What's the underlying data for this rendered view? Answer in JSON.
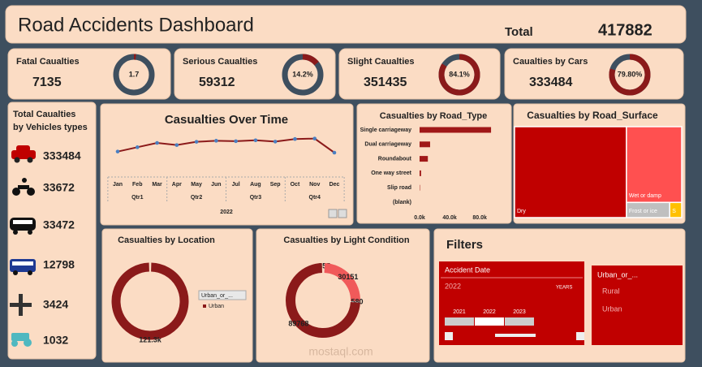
{
  "header": {
    "title": "Road Accidents Dashboard",
    "total_label": "Total",
    "total_value": "417882"
  },
  "kpis": [
    {
      "label": "Fatal Caualties",
      "value": "7135",
      "share": 1.7
    },
    {
      "label": "Serious Caualties",
      "value": "59312",
      "share": 14.2,
      "share_label": "14.2%"
    },
    {
      "label": "Slight Caualties",
      "value": "351435",
      "share": 84.1,
      "share_label": "84.1%"
    },
    {
      "label": "Caualties by Cars",
      "value": "333484",
      "share": 79.8,
      "share_label": "79.80%"
    }
  ],
  "vehicles": {
    "title_lines": [
      "Total Caualties",
      "by Vehicles types"
    ],
    "values": [
      "333484",
      "33672",
      "33472",
      "12798",
      "3424",
      "1032"
    ]
  },
  "chart_data": [
    {
      "type": "line",
      "title": "Casualties Over Time",
      "categories": [
        "Jan",
        "Feb",
        "Mar",
        "Apr",
        "May",
        "Jun",
        "Jul",
        "Aug",
        "Sep",
        "Oct",
        "Nov",
        "Dec"
      ],
      "groups": [
        "Qtr1",
        "Qtr2",
        "Qtr3",
        "Qtr4"
      ],
      "group_label": "2022",
      "values": [
        30000,
        32000,
        34000,
        33000,
        34500,
        35000,
        34800,
        35200,
        34600,
        35800,
        36000,
        29500
      ],
      "ylim": [
        25000,
        40000
      ],
      "color": "#8b1a1a",
      "marker_color": "#4a7fc1"
    },
    {
      "type": "hbar",
      "title": "Casualties by Road_Type",
      "categories": [
        "Single carriageway",
        "Dual carriageway",
        "Roundabout",
        "One way street",
        "Slip road",
        "(blank)"
      ],
      "values": [
        95000,
        14000,
        11000,
        2000,
        500,
        0
      ],
      "xlim": [
        0,
        96000
      ],
      "xticks": [
        {
          "value": 0,
          "label": "0.0k"
        },
        {
          "value": 40000,
          "label": "40.0k"
        },
        {
          "value": 80000,
          "label": "80.0k"
        }
      ],
      "color": "#a01818"
    },
    {
      "type": "treemap",
      "title": "Casualties by Road_Surface",
      "categories": [
        "Dry",
        "Wet or damp",
        "Frost or ice",
        "S"
      ],
      "values": [
        279445,
        115000,
        18000,
        5000
      ],
      "colors": [
        "#c00000",
        "#ff5050",
        "#bfbfbf",
        "#ffc000"
      ]
    },
    {
      "type": "donut",
      "title": "Casualties by Location",
      "categories": [
        "Urban"
      ],
      "values": [
        121300
      ],
      "value_labels": [
        "121.3k"
      ],
      "colors": [
        "#8b1a1a"
      ],
      "legend_title": "Urban_or_..."
    },
    {
      "type": "donut",
      "title": "Casualties by Light Condition",
      "categories": [
        null,
        null,
        null,
        null
      ],
      "values": [
        355,
        30151,
        580,
        89768
      ],
      "colors": [
        "#f3c9c9",
        "#f05a5a",
        "#e0e0e0",
        "#8b1a1a"
      ]
    }
  ],
  "filters": {
    "title": "Filters",
    "date": {
      "title": "Accident Date",
      "selected": "2022",
      "level": "YEARS",
      "years": [
        "2021",
        "2022",
        "2023"
      ]
    },
    "area": {
      "title": "Urban_or_...",
      "items": [
        "Rural",
        "Urban"
      ]
    }
  },
  "watermark": "mostaql.com"
}
